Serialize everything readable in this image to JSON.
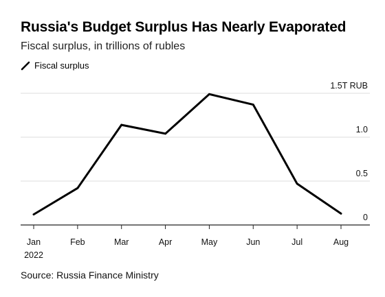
{
  "chart_data": {
    "type": "line",
    "title": "Russia's Budget Surplus Has Nearly Evaporated",
    "subtitle": "Fiscal surplus, in trillions of rubles",
    "categories": [
      "Jan",
      "Feb",
      "Mar",
      "Apr",
      "May",
      "Jun",
      "Jul",
      "Aug"
    ],
    "year_label": "2022",
    "series": [
      {
        "name": "Fiscal surplus",
        "values": [
          0.12,
          0.42,
          1.14,
          1.04,
          1.49,
          1.37,
          0.47,
          0.13
        ]
      }
    ],
    "ylim": [
      0,
      1.5
    ],
    "yticks": [
      {
        "value": 0,
        "label": "0"
      },
      {
        "value": 0.5,
        "label": "0.5"
      },
      {
        "value": 1.0,
        "label": "1.0"
      },
      {
        "value": 1.5,
        "label": "1.5T RUB"
      }
    ],
    "grid": true,
    "legend_position": "top-left",
    "line_color": "#000000",
    "source": "Source: Russia Finance Ministry"
  }
}
